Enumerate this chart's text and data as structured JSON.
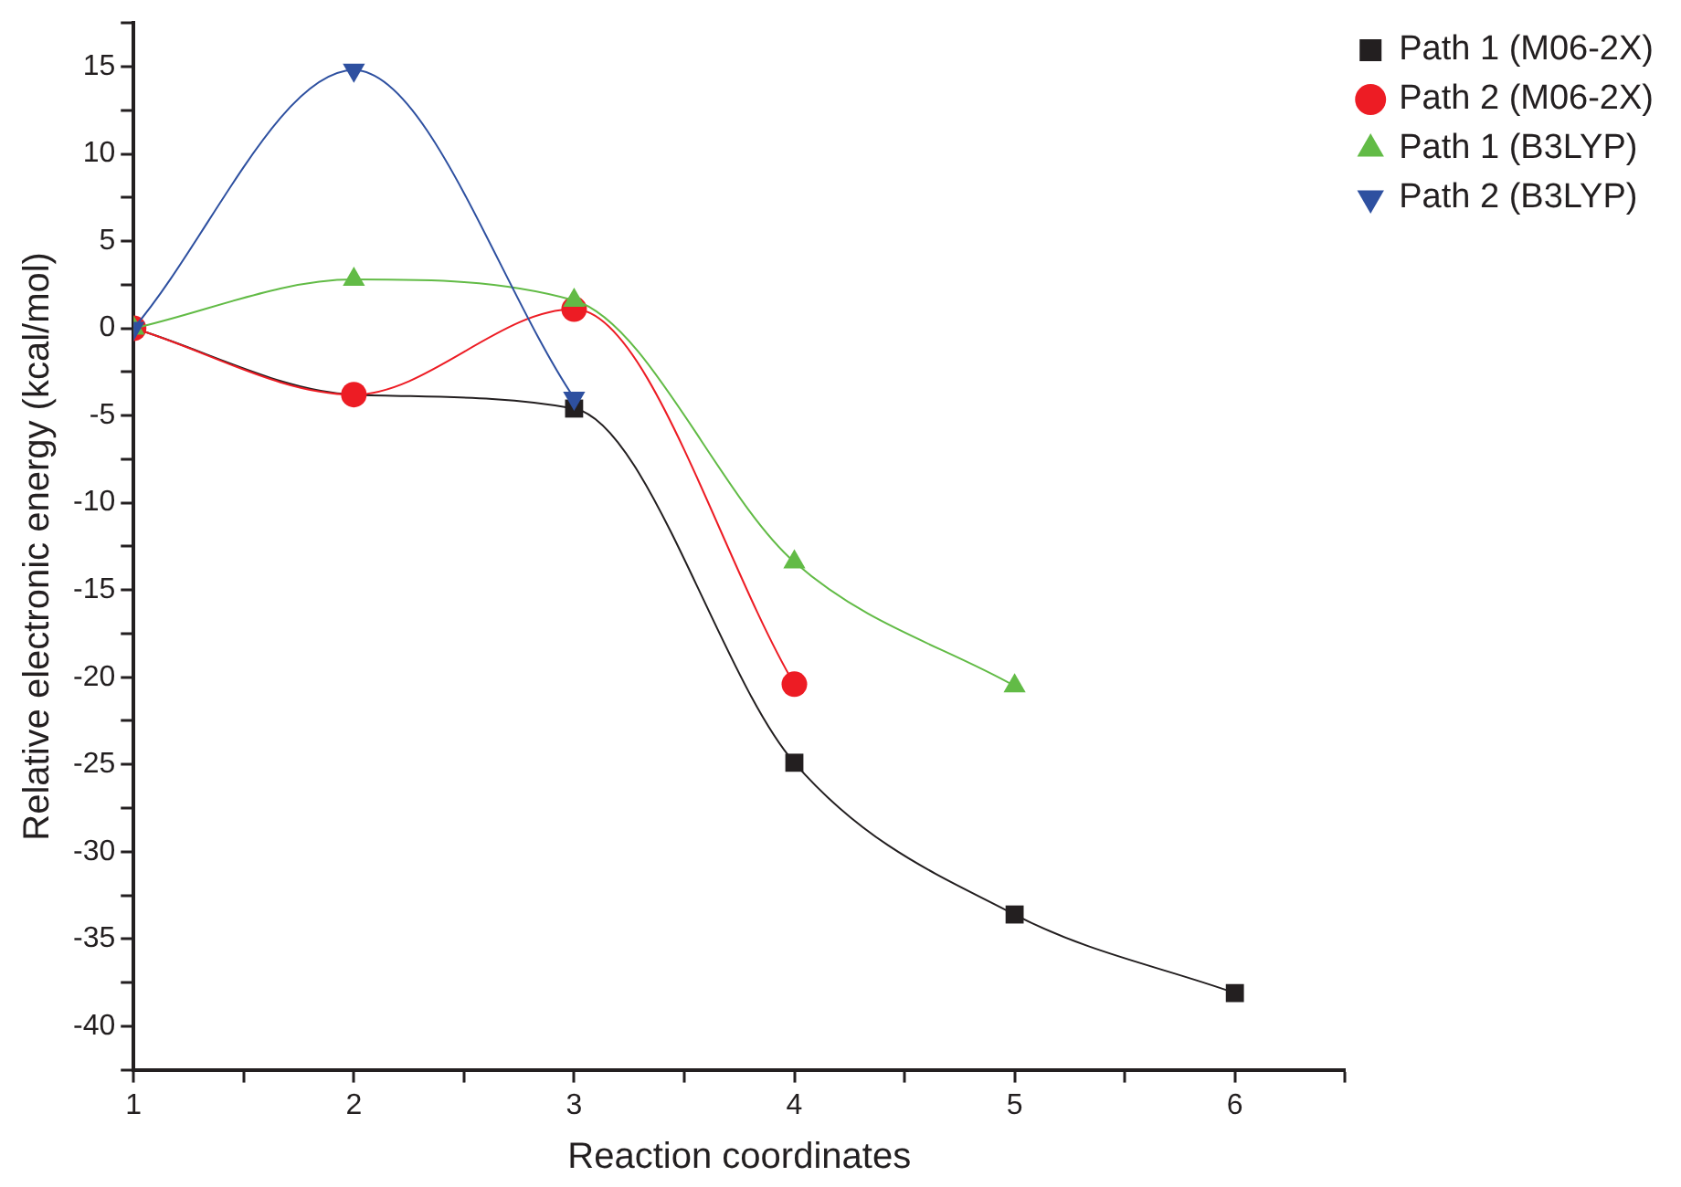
{
  "chart_data": {
    "type": "line",
    "xlabel": "Reaction coordinates",
    "ylabel": "Relative electronic energy (kcal/mol)",
    "xlim": [
      1,
      6.5
    ],
    "xticks": [
      1,
      {
        "value": 1.5,
        "label": null
      },
      2,
      {
        "value": 2.5,
        "label": null
      },
      3,
      {
        "value": 3.5,
        "label": null
      },
      4,
      {
        "value": 4.5,
        "label": null
      },
      5,
      {
        "value": 5.5,
        "label": null
      },
      6,
      {
        "value": 6.5,
        "label": null
      }
    ],
    "ylim": [
      -42.5,
      17.5
    ],
    "yticks": [
      {
        "value": -42.5,
        "label": null
      },
      -40,
      {
        "value": -37.5,
        "label": null
      },
      -35,
      {
        "value": -32.5,
        "label": null
      },
      -30,
      {
        "value": -27.5,
        "label": null
      },
      -25,
      {
        "value": -22.5,
        "label": null
      },
      -20,
      {
        "value": -17.5,
        "label": null
      },
      -15,
      {
        "value": -12.5,
        "label": null
      },
      -10,
      {
        "value": -7.5,
        "label": null
      },
      -5,
      {
        "value": -2.5,
        "label": null
      },
      0,
      {
        "value": 2.5,
        "label": null
      },
      5,
      {
        "value": 7.5,
        "label": null
      },
      10,
      {
        "value": 12.5,
        "label": null
      },
      15,
      {
        "value": 17.5,
        "label": null
      }
    ],
    "grid": false,
    "legend": "top right",
    "series": [
      {
        "name": "Path 1 (M06-2X)",
        "color": "#231f20",
        "marker": "square",
        "x": [
          1,
          2,
          3,
          4,
          5,
          6
        ],
        "values": [
          0,
          -3.8,
          -4.6,
          -24.9,
          -33.6,
          -38.1
        ]
      },
      {
        "name": "Path 2 (M06-2X)",
        "color": "#ed1c24",
        "marker": "circle",
        "x": [
          1,
          2,
          3,
          4
        ],
        "values": [
          0,
          -3.8,
          1.1,
          -20.4
        ]
      },
      {
        "name": "Path 1 (B3LYP)",
        "color": "#62bb46",
        "marker": "triangle",
        "x": [
          1,
          2,
          3,
          4,
          5
        ],
        "values": [
          0,
          2.8,
          1.6,
          -13.4,
          -20.5
        ]
      },
      {
        "name": "Path 2 (B3LYP)",
        "color": "#2e50a0",
        "marker": "triangle-down",
        "x": [
          1,
          2,
          3
        ],
        "values": [
          0,
          14.8,
          -4.0
        ]
      }
    ]
  }
}
